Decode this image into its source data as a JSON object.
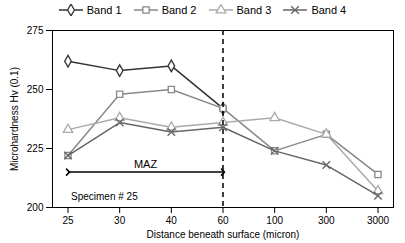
{
  "chart_data": {
    "type": "line",
    "categories": [
      "25",
      "30",
      "40",
      "60",
      "100",
      "300",
      "3000"
    ],
    "series": [
      {
        "name": "Band 1",
        "color": "#333333",
        "marker": "diamond",
        "values": [
          262,
          258,
          260,
          242,
          null,
          null,
          null
        ]
      },
      {
        "name": "Band 2",
        "color": "#888888",
        "marker": "square",
        "values": [
          222,
          248,
          250,
          242,
          224,
          231,
          214
        ]
      },
      {
        "name": "Band 3",
        "color": "#aaaaaa",
        "marker": "triangle",
        "values": [
          233,
          238,
          234,
          236,
          238,
          231,
          207
        ]
      },
      {
        "name": "Band 4",
        "color": "#666666",
        "marker": "x",
        "values": [
          222,
          236,
          232,
          234,
          224,
          218,
          205
        ]
      }
    ],
    "xlabel": "Distance beneath surface (micron)",
    "ylabel": "Microhardness Hv (0.1)",
    "ylim": [
      200,
      275
    ],
    "yticks": [
      200,
      225,
      250,
      275
    ],
    "grid": false,
    "legend": "top",
    "annotations": [
      {
        "type": "vline",
        "x": "60",
        "line_style": "dashed"
      },
      {
        "type": "arrow",
        "x1": "25",
        "x2": "60",
        "y": 215,
        "text": "MAZ"
      },
      {
        "type": "text",
        "x": "25",
        "y": 206,
        "text": "Specimen # 25"
      }
    ]
  }
}
